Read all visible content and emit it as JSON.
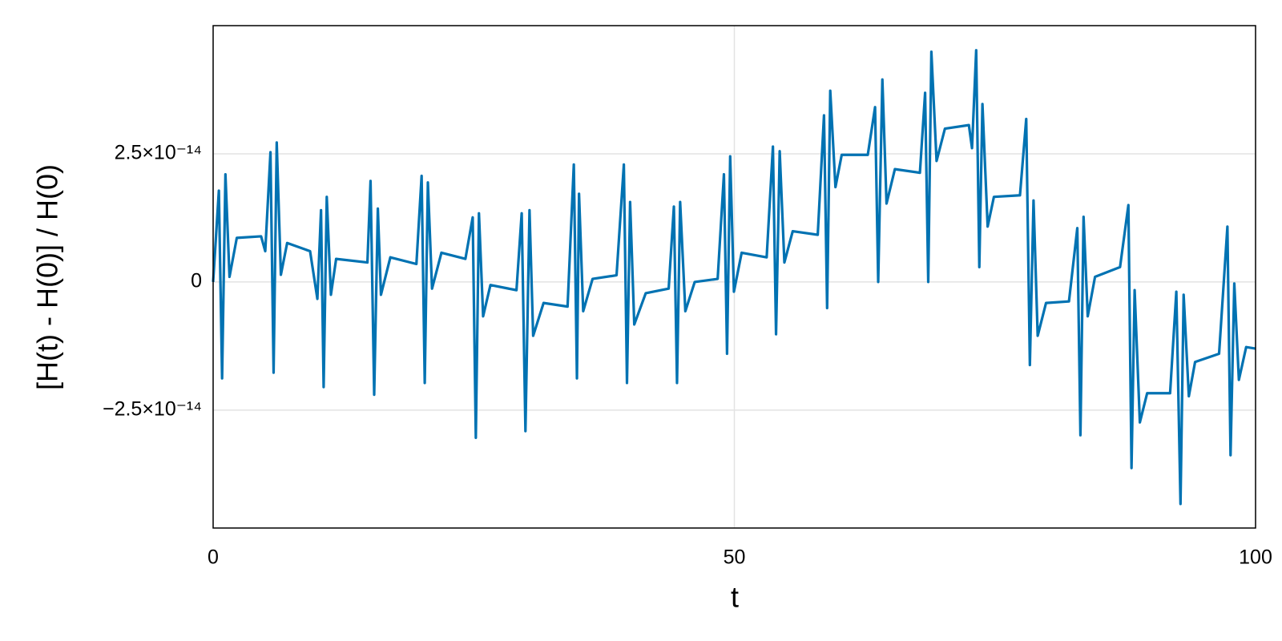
{
  "chart_data": {
    "type": "line",
    "xlabel": "t",
    "ylabel": "[H(t) - H(0)] / H(0)",
    "color": "#0072b2",
    "grid": true,
    "xlim": [
      0,
      100
    ],
    "xticks": [
      0,
      50,
      100
    ],
    "ylim": [
      -4.8e-14,
      5e-14
    ],
    "yticks": [
      {
        "value": -2.5e-14,
        "label": "−2.5×10⁻¹⁴"
      },
      0,
      {
        "value": 2.5e-14,
        "label": "2.5×10⁻¹⁴"
      }
    ],
    "x": [
      0,
      0.55,
      0.86,
      1.18,
      1.57,
      2.27,
      4.6,
      5,
      5.5,
      5.8,
      6.1,
      6.5,
      7.1,
      9.3,
      10,
      10.35,
      10.6,
      10.9,
      11.3,
      11.8,
      14.8,
      15.1,
      15.45,
      15.8,
      16.1,
      17,
      19.5,
      20,
      20.3,
      20.6,
      21,
      21.9,
      24.2,
      24.9,
      25.2,
      25.5,
      25.9,
      26.6,
      29.1,
      29.6,
      29.96,
      30.35,
      30.7,
      31.7,
      34,
      34.6,
      34.9,
      35.1,
      35.5,
      36.4,
      38.7,
      39.4,
      39.7,
      40,
      40.4,
      41.5,
      43.7,
      44.2,
      44.5,
      44.8,
      45.3,
      46.2,
      48.4,
      49,
      49.3,
      49.6,
      49.96,
      50.7,
      53.1,
      53.7,
      54,
      54.35,
      54.8,
      55.6,
      58,
      58.6,
      58.9,
      59.2,
      59.7,
      60.3,
      62.8,
      63.5,
      63.8,
      64.2,
      64.6,
      65.4,
      67.8,
      68.3,
      68.6,
      68.9,
      69.4,
      70.2,
      72.5,
      72.8,
      73.2,
      73.5,
      73.8,
      74.3,
      74.9,
      77.4,
      78,
      78.35,
      78.7,
      79.1,
      79.9,
      82.1,
      82.9,
      83.2,
      83.5,
      83.9,
      84.6,
      87,
      87.8,
      88.1,
      88.4,
      88.9,
      89.6,
      91.8,
      92.4,
      92.8,
      93.1,
      93.6,
      94.2,
      96.5,
      97.3,
      97.6,
      97.96,
      98.4,
      99.1,
      100
    ],
    "values": [
      0,
      1.78e-14,
      -1.88e-14,
      2.1e-14,
      1e-15,
      8.6e-15,
      8.9e-15,
      6e-15,
      2.53e-14,
      -1.77e-14,
      2.72e-14,
      1.4e-15,
      7.6e-15,
      6e-15,
      -3.3e-15,
      1.4e-14,
      -2.05e-14,
      1.66e-14,
      -2.5e-15,
      4.5e-15,
      3.8e-15,
      1.97e-14,
      -2.2e-14,
      1.43e-14,
      -2.5e-15,
      4.8e-15,
      3.5e-15,
      2.07e-14,
      -1.97e-14,
      1.94e-14,
      -1.3e-15,
      5.7e-15,
      4.5e-15,
      1.26e-14,
      -3.04e-14,
      1.34e-14,
      -6.7e-15,
      -6e-16,
      -1.6e-15,
      1.34e-14,
      -2.91e-14,
      1.4e-14,
      -1.05e-14,
      -4.1e-15,
      -4.8e-15,
      2.29e-14,
      -1.88e-14,
      1.72e-14,
      -5.7e-15,
      6e-16,
      1.3e-15,
      2.29e-14,
      -1.97e-14,
      1.56e-14,
      -8.3e-15,
      -2.2e-15,
      -1.3e-15,
      1.47e-14,
      -1.97e-14,
      1.56e-14,
      -5.7e-15,
      0,
      6e-16,
      2.1e-14,
      -1.4e-14,
      2.45e-14,
      -1.9e-15,
      5.7e-15,
      4.8e-15,
      2.64e-14,
      -1.02e-14,
      2.55e-14,
      3.8e-15,
      9.9e-15,
      9.2e-15,
      3.25e-14,
      -5.1e-15,
      3.73e-14,
      1.85e-14,
      2.48e-14,
      2.48e-14,
      3.41e-14,
      0,
      3.95e-14,
      1.53e-14,
      2.2e-14,
      2.13e-14,
      3.69e-14,
      0,
      4.49e-14,
      2.36e-14,
      2.99e-14,
      3.06e-14,
      2.61e-14,
      4.52e-14,
      2.9e-15,
      3.47e-14,
      1.08e-14,
      1.66e-14,
      1.69e-14,
      3.18e-14,
      -1.62e-14,
      1.59e-14,
      -1.05e-14,
      -4.1e-15,
      -3.8e-15,
      1.05e-14,
      -2.99e-14,
      1.27e-14,
      -6.7e-15,
      1e-15,
      2.9e-15,
      1.5e-14,
      -3.63e-14,
      -1.6e-15,
      -2.74e-14,
      -2.17e-14,
      -2.17e-14,
      -1.9e-15,
      -4.33e-14,
      -2.5e-15,
      -2.23e-14,
      -1.56e-14,
      -1.4e-14,
      1.08e-14,
      -3.38e-14,
      -3e-16,
      -1.91e-14,
      -1.27e-14,
      -1.3e-14
    ]
  }
}
